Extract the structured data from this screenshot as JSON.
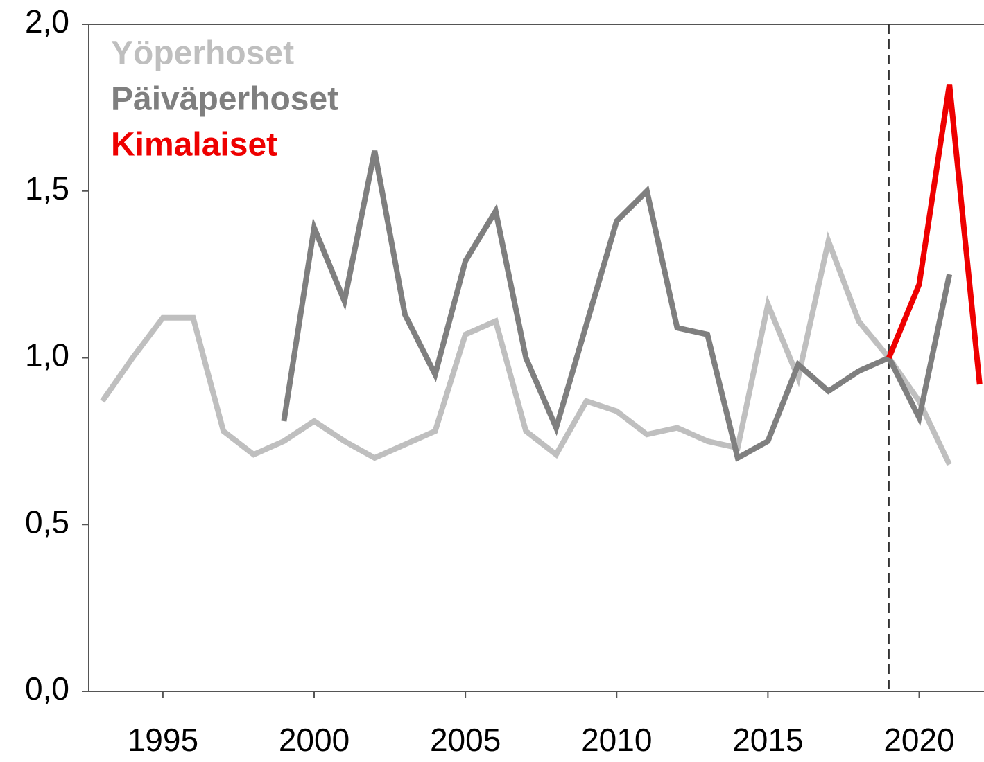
{
  "chart_data": {
    "type": "line",
    "x": [
      1993,
      1994,
      1995,
      1996,
      1997,
      1998,
      1999,
      2000,
      2001,
      2002,
      2003,
      2004,
      2005,
      2006,
      2007,
      2008,
      2009,
      2010,
      2011,
      2012,
      2013,
      2014,
      2015,
      2016,
      2017,
      2018,
      2019,
      2020,
      2021,
      2022
    ],
    "series": [
      {
        "name": "Yöperhoset",
        "color": "#bfbfbf",
        "values": [
          0.87,
          1.0,
          1.12,
          1.12,
          0.78,
          0.71,
          0.75,
          0.81,
          0.75,
          0.7,
          0.74,
          0.78,
          1.07,
          1.11,
          0.78,
          0.71,
          0.87,
          0.84,
          0.77,
          0.79,
          0.75,
          0.73,
          1.16,
          0.94,
          1.35,
          1.11,
          1.0,
          0.87,
          0.68,
          null
        ]
      },
      {
        "name": "Päiväperhoset",
        "color": "#7f7f7f",
        "values": [
          null,
          null,
          null,
          null,
          null,
          null,
          0.81,
          1.39,
          1.17,
          1.62,
          1.13,
          0.95,
          1.29,
          1.44,
          1.0,
          0.79,
          1.1,
          1.41,
          1.5,
          1.09,
          1.07,
          0.7,
          0.75,
          0.98,
          0.9,
          0.96,
          1.0,
          0.82,
          1.25,
          null
        ]
      },
      {
        "name": "Kimalaiset",
        "color": "#ee0000",
        "values": [
          null,
          null,
          null,
          null,
          null,
          null,
          null,
          null,
          null,
          null,
          null,
          null,
          null,
          null,
          null,
          null,
          null,
          null,
          null,
          null,
          null,
          null,
          null,
          null,
          null,
          null,
          1.0,
          1.22,
          1.82,
          0.92
        ]
      }
    ],
    "xlim": [
      1992.55,
      2022.12
    ],
    "xticks": [
      1995,
      2000,
      2005,
      2010,
      2015,
      2020
    ],
    "ylim": [
      0,
      2
    ],
    "yticks": [
      {
        "value": 0,
        "label": "0,0"
      },
      {
        "value": 0.5,
        "label": "0,5"
      },
      {
        "value": 1,
        "label": "1,0"
      },
      {
        "value": 1.5,
        "label": "1,5"
      },
      {
        "value": 2,
        "label": "2,0"
      }
    ],
    "vline": 2019,
    "legend": "upper left"
  }
}
